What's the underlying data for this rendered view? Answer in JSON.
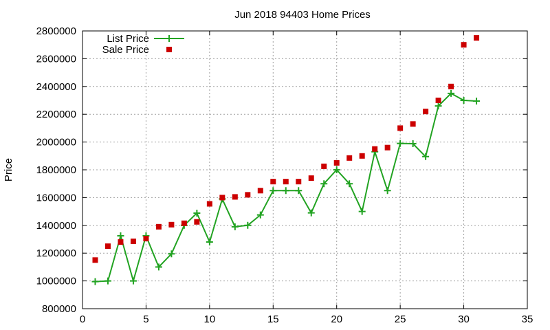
{
  "chart_data": {
    "type": "scatter",
    "title": "Jun 2018 94403 Home Prices",
    "xlabel": "",
    "ylabel": "Price",
    "xlim": [
      0,
      35
    ],
    "ylim": [
      800000,
      2800000
    ],
    "xticks": [
      "0",
      "5",
      "10",
      "15",
      "20",
      "25",
      "30",
      "35"
    ],
    "yticks": [
      "800000",
      "1000000",
      "1200000",
      "1400000",
      "1600000",
      "1800000",
      "2000000",
      "2200000",
      "2400000",
      "2600000",
      "2800000"
    ],
    "grid": true,
    "legend_position": "top-left",
    "series": [
      {
        "name": "List Price",
        "style": "line-plus",
        "color": "#22a322",
        "x": [
          1,
          2,
          3,
          4,
          5,
          6,
          7,
          8,
          9,
          10,
          11,
          12,
          13,
          14,
          15,
          16,
          17,
          18,
          19,
          20,
          21,
          22,
          23,
          24,
          25,
          26,
          27,
          28,
          29,
          30,
          31
        ],
        "y": [
          995000,
          1000000,
          1325000,
          1000000,
          1325000,
          1100000,
          1195000,
          1400000,
          1488000,
          1280000,
          1590000,
          1390000,
          1400000,
          1475000,
          1650000,
          1650000,
          1650000,
          1490000,
          1700000,
          1800000,
          1700000,
          1500000,
          1930000,
          1650000,
          1990000,
          1988000,
          1895000,
          2260000,
          2350000,
          2300000,
          2295000
        ]
      },
      {
        "name": "Sale Price",
        "style": "square",
        "color": "#cc0000",
        "x": [
          1,
          2,
          3,
          4,
          5,
          6,
          7,
          8,
          9,
          10,
          11,
          12,
          13,
          14,
          15,
          16,
          17,
          18,
          19,
          20,
          21,
          22,
          23,
          24,
          25,
          26,
          27,
          28,
          29,
          30,
          31
        ],
        "y": [
          1150000,
          1250000,
          1280000,
          1285000,
          1305000,
          1390000,
          1405000,
          1415000,
          1425000,
          1555000,
          1600000,
          1605000,
          1620000,
          1650000,
          1715000,
          1715000,
          1715000,
          1740000,
          1825000,
          1850000,
          1885000,
          1900000,
          1950000,
          1960000,
          2100000,
          2130000,
          2220000,
          2300000,
          2400000,
          2700000,
          2750000
        ]
      }
    ]
  }
}
